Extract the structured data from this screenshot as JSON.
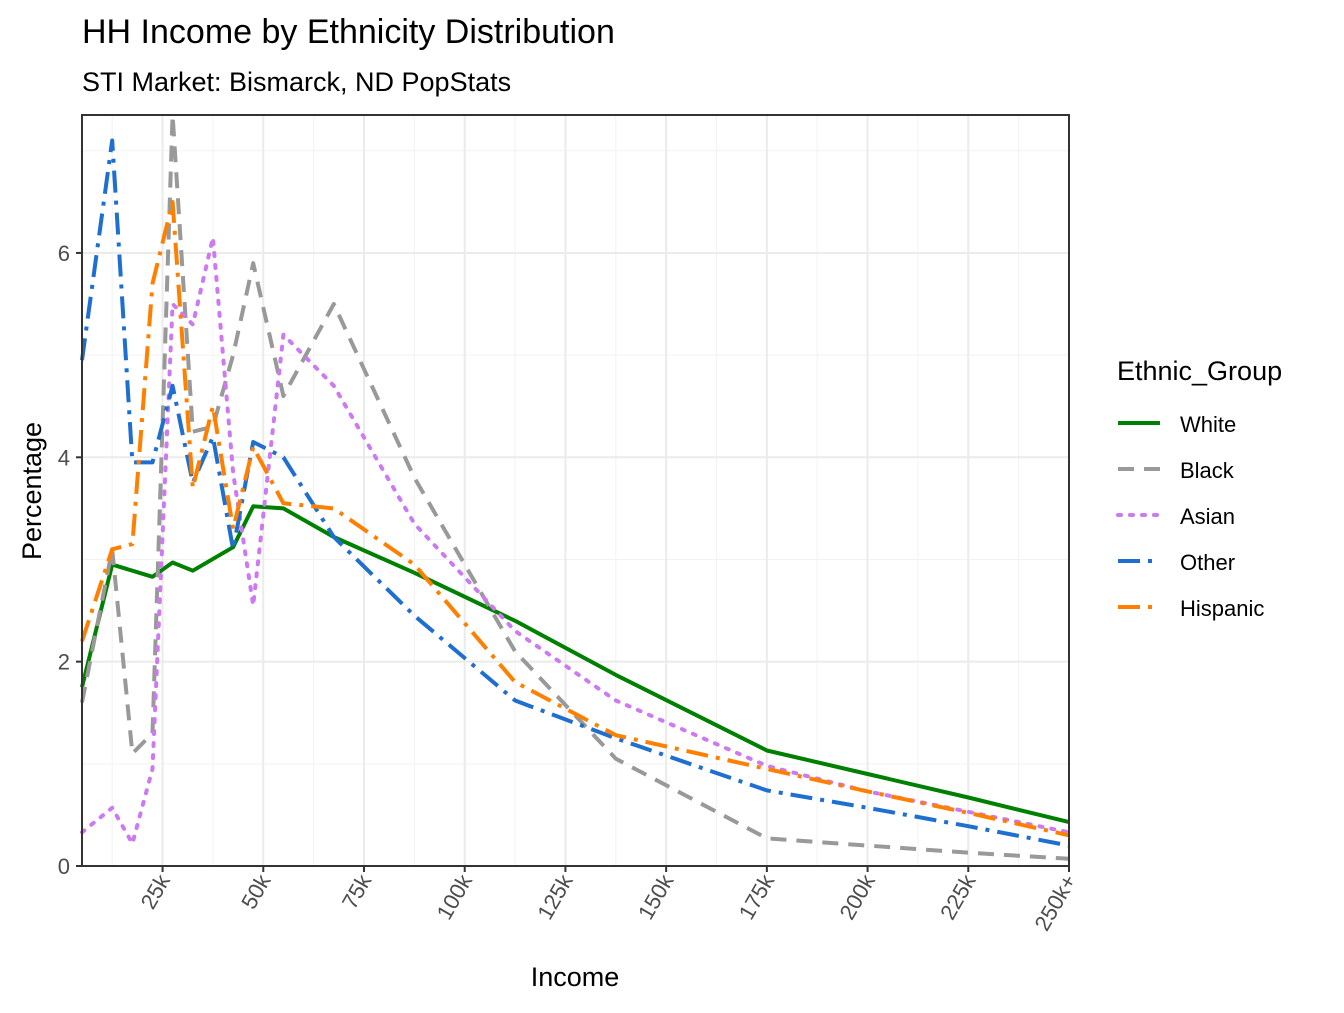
{
  "chart_data": {
    "type": "line",
    "title": "HH Income by Ethnicity Distribution",
    "subtitle": "STI Market: Bismarck, ND PopStats",
    "xlabel": "Income",
    "ylabel": "Percentage",
    "xlim": [
      5,
      250
    ],
    "ylim": [
      0,
      7.35
    ],
    "x_ticks": [
      25,
      50,
      75,
      100,
      125,
      150,
      175,
      200,
      225,
      250
    ],
    "x_tick_labels": [
      "25k",
      "50k",
      "75k",
      "100k",
      "125k",
      "150k",
      "175k",
      "200k",
      "225k",
      "250k+"
    ],
    "y_ticks": [
      0,
      2,
      4,
      6
    ],
    "y_tick_labels": [
      "0",
      "2",
      "4",
      "6"
    ],
    "grid": true,
    "legend": {
      "title": "Ethnic_Group",
      "position": "right"
    },
    "series": [
      {
        "name": "White",
        "color": "#008000",
        "dash": "solid",
        "points": [
          [
            5,
            1.75
          ],
          [
            12.5,
            2.95
          ],
          [
            22.5,
            2.83
          ],
          [
            27.5,
            2.97
          ],
          [
            32.5,
            2.89
          ],
          [
            42.5,
            3.12
          ],
          [
            47.5,
            3.52
          ],
          [
            55,
            3.5
          ],
          [
            67.5,
            3.22
          ],
          [
            87.5,
            2.87
          ],
          [
            112.5,
            2.4
          ],
          [
            137.5,
            1.87
          ],
          [
            175,
            1.13
          ],
          [
            200,
            0.9
          ],
          [
            225,
            0.67
          ],
          [
            250,
            0.43
          ]
        ]
      },
      {
        "name": "Black",
        "color": "#999999",
        "dash": "dashed",
        "points": [
          [
            5,
            1.6
          ],
          [
            12.5,
            3.1
          ],
          [
            17.5,
            1.1
          ],
          [
            22.5,
            1.3
          ],
          [
            27.5,
            7.35
          ],
          [
            32.5,
            4.25
          ],
          [
            37.5,
            4.3
          ],
          [
            42.5,
            5.0
          ],
          [
            47.5,
            5.9
          ],
          [
            55,
            4.6
          ],
          [
            67.5,
            5.5
          ],
          [
            87.5,
            3.8
          ],
          [
            112.5,
            2.1
          ],
          [
            137.5,
            1.05
          ],
          [
            175,
            0.27
          ],
          [
            200,
            0.2
          ],
          [
            225,
            0.13
          ],
          [
            250,
            0.07
          ]
        ]
      },
      {
        "name": "Asian",
        "color": "#CC79F2",
        "dash": "dotted",
        "points": [
          [
            5,
            0.33
          ],
          [
            12.5,
            0.57
          ],
          [
            17.5,
            0.22
          ],
          [
            22.5,
            0.95
          ],
          [
            27.5,
            5.5
          ],
          [
            32.5,
            5.3
          ],
          [
            37.5,
            6.15
          ],
          [
            42.5,
            3.85
          ],
          [
            47.5,
            2.55
          ],
          [
            55,
            5.2
          ],
          [
            67.5,
            4.7
          ],
          [
            87.5,
            3.35
          ],
          [
            112.5,
            2.3
          ],
          [
            137.5,
            1.62
          ],
          [
            175,
            0.98
          ],
          [
            200,
            0.73
          ],
          [
            225,
            0.53
          ],
          [
            250,
            0.33
          ]
        ]
      },
      {
        "name": "Other",
        "color": "#1F6FD0",
        "dash": "dashdot",
        "points": [
          [
            5,
            4.95
          ],
          [
            12.5,
            7.1
          ],
          [
            17.5,
            3.95
          ],
          [
            22.5,
            3.95
          ],
          [
            27.5,
            4.7
          ],
          [
            32.5,
            3.75
          ],
          [
            37.5,
            4.2
          ],
          [
            42.5,
            3.1
          ],
          [
            47.5,
            4.15
          ],
          [
            55,
            4.0
          ],
          [
            67.5,
            3.22
          ],
          [
            87.5,
            2.45
          ],
          [
            112.5,
            1.62
          ],
          [
            137.5,
            1.25
          ],
          [
            175,
            0.74
          ],
          [
            200,
            0.57
          ],
          [
            225,
            0.39
          ],
          [
            250,
            0.2
          ]
        ]
      },
      {
        "name": "Hispanic",
        "color": "#FF8000",
        "dash": "dashdot",
        "points": [
          [
            5,
            2.2
          ],
          [
            12.5,
            3.1
          ],
          [
            17.5,
            3.15
          ],
          [
            22.5,
            5.7
          ],
          [
            27.5,
            6.5
          ],
          [
            32.5,
            3.7
          ],
          [
            37.5,
            4.5
          ],
          [
            42.5,
            3.3
          ],
          [
            47.5,
            4.1
          ],
          [
            55,
            3.55
          ],
          [
            67.5,
            3.5
          ],
          [
            87.5,
            2.95
          ],
          [
            112.5,
            1.8
          ],
          [
            137.5,
            1.28
          ],
          [
            175,
            0.95
          ],
          [
            200,
            0.73
          ],
          [
            225,
            0.52
          ],
          [
            250,
            0.3
          ]
        ]
      }
    ]
  }
}
